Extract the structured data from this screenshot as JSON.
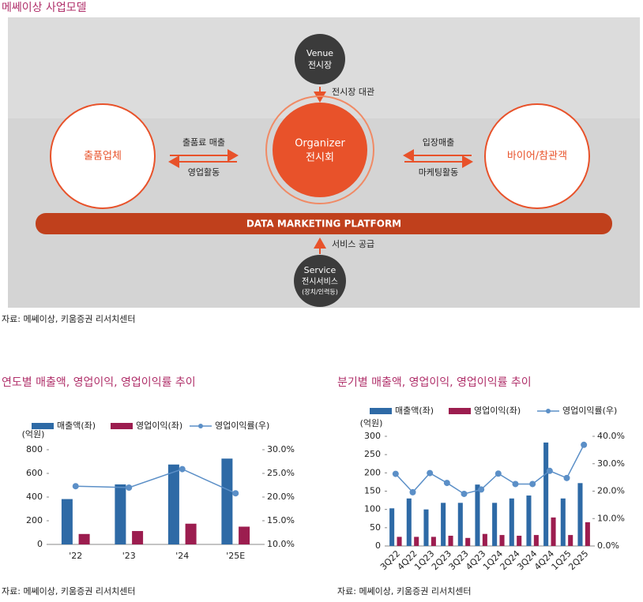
{
  "header": {
    "title": "메쎄이상 사업모델"
  },
  "diagram": {
    "venue": {
      "label": "Venue",
      "sublabel": "전시장"
    },
    "venue_arrow": "전시장 대관",
    "exhibitor": "출품업체",
    "exhibitor_flow_top": "출품료 매출",
    "exhibitor_flow_bottom": "영업활동",
    "organizer": {
      "label": "Organizer",
      "sublabel": "전시회"
    },
    "buyer": "바이어/참관객",
    "buyer_flow_top": "입장매출",
    "buyer_flow_bottom": "마케팅활동",
    "platform": "DATA MARKETING PLATFORM",
    "service_arrow": "서비스 공급",
    "service": {
      "label": "Service",
      "sublabel": "전시서비스",
      "note": "(장치/인력등)"
    },
    "source": "자료: 메쎄이상, 키움증권 리서치센터"
  },
  "chart_data": [
    {
      "type": "bar",
      "title": "연도별 매출액, 영업이익, 영업이익률 추이",
      "unit_label": "(억원)",
      "categories": [
        "'22",
        "'23",
        "'24",
        "'25E"
      ],
      "series": [
        {
          "name": "매출액(좌)",
          "color": "#2e6aa6",
          "values": [
            383,
            507,
            675,
            725
          ]
        },
        {
          "name": "영업이익(좌)",
          "color": "#9c1d4f",
          "values": [
            88,
            113,
            175,
            150
          ]
        },
        {
          "name": "영업이익률(우)",
          "color": "#5b8fc7",
          "axis": "y2",
          "type": "line",
          "values": [
            22.3,
            22.0,
            25.9,
            20.8
          ]
        }
      ],
      "ylim": [
        0,
        800
      ],
      "yticks": [
        0,
        200,
        400,
        600,
        800
      ],
      "y2lim": [
        10,
        30
      ],
      "y2ticks": [
        {
          "value": 10,
          "label": "10.0%"
        },
        {
          "value": 15,
          "label": "15.0%"
        },
        {
          "value": 20,
          "label": "20.0%"
        },
        {
          "value": 25,
          "label": "25.0%"
        },
        {
          "value": 30,
          "label": "30.0%"
        }
      ],
      "source": "자료: 메쎄이상, 키움증권 리서치센터"
    },
    {
      "type": "bar",
      "title": "분기별 매출액, 영업이익, 영업이익률 추이",
      "unit_label": "(억원)",
      "categories": [
        "3Q22",
        "4Q22",
        "1Q23",
        "2Q23",
        "3Q23",
        "4Q23",
        "1Q24",
        "2Q24",
        "3Q24",
        "4Q24",
        "1Q25",
        "2Q25"
      ],
      "series": [
        {
          "name": "매출액(좌)",
          "color": "#2e6aa6",
          "values": [
            103,
            130,
            100,
            118,
            118,
            168,
            118,
            130,
            138,
            283,
            130,
            172
          ]
        },
        {
          "name": "영업이익(좌)",
          "color": "#9c1d4f",
          "values": [
            25,
            25,
            25,
            28,
            22,
            33,
            30,
            28,
            30,
            78,
            30,
            65
          ]
        },
        {
          "name": "영업이익률(우)",
          "color": "#5b8fc7",
          "axis": "y2",
          "type": "line",
          "values": [
            26.3,
            19.6,
            26.6,
            23.0,
            19.0,
            20.6,
            26.4,
            22.6,
            22.6,
            27.4,
            24.8,
            36.9
          ]
        }
      ],
      "ylim": [
        0,
        300
      ],
      "yticks": [
        0,
        50,
        100,
        150,
        200,
        250,
        300
      ],
      "y2lim": [
        0,
        40
      ],
      "y2ticks": [
        {
          "value": 0,
          "label": "0.0%"
        },
        {
          "value": 10,
          "label": "10.0%"
        },
        {
          "value": 20,
          "label": "20.0%"
        },
        {
          "value": 30,
          "label": "30.0%"
        },
        {
          "value": 40,
          "label": "40.0%"
        }
      ],
      "source": "자료: 메쎄이상, 키움증권 리서치센터"
    }
  ]
}
